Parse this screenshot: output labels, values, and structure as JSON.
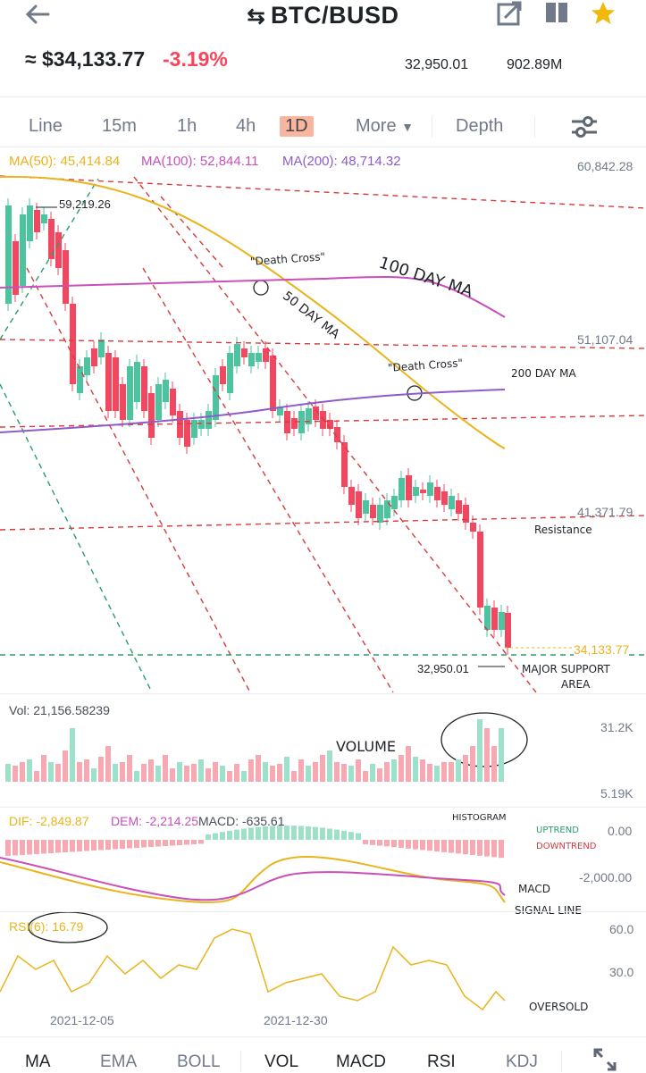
{
  "header": {
    "back_icon": "arrow-left-icon",
    "title": "BTC/BUSD",
    "swap_icon": "swap-icon",
    "share_icon": "share-icon",
    "split_icon": "split-screen-icon",
    "favorite_icon": "star-icon"
  },
  "ticker": {
    "price": "≈ $34,133.77",
    "change": "-3.19%",
    "low": "32,950.01",
    "volume": "902.89M"
  },
  "tabs": {
    "items": [
      "Line",
      "15m",
      "1h",
      "4h",
      "1D",
      "More",
      "Depth"
    ],
    "active": "1D",
    "settings_icon": "sliders-icon"
  },
  "ma": {
    "ma50": "MA(50): 45,414.84",
    "ma100": "MA(100): 52,844.11",
    "ma200": "MA(200): 48,714.32"
  },
  "price_axis": {
    "top": "60,842.28",
    "mid": "51,107.04",
    "low": "41,371.79",
    "current": "34,133.77",
    "high_marker": "59,219.26",
    "low_marker": "32,950.01"
  },
  "annotations": {
    "death_cross_1": "\"Death Cross\"",
    "day100": "100 DAY MA",
    "day50": "50 DAY MA",
    "death_cross_2": "\"Death Cross\"",
    "day200": "200 DAY MA",
    "resistance": "Resistance",
    "major_support": "MAJOR SUPPORT",
    "area": "AREA",
    "volume": "VOLUME",
    "histogram": "HISTOGRAM",
    "uptrend": "UPTREND",
    "downtrend": "DOWNTREND",
    "macd": "MACD",
    "signal": "SIGNAL LINE",
    "oversold": "OVERSOLD"
  },
  "volume": {
    "label": "Vol: 21,156.58239",
    "max": "31.2K",
    "min": "5.19K"
  },
  "macd": {
    "dif": "DIF: -2,849.87",
    "dem": "DEM: -2,214.25",
    "macd": "MACD: -635.61",
    "axis_top": "0.00",
    "axis_bottom": "-2,000.00"
  },
  "rsi": {
    "label": "RSI(6): 16.79",
    "axis_top": "60.0",
    "axis_mid": "30.0"
  },
  "dates": [
    "2021-12-05",
    "2021-12-30"
  ],
  "indicators": [
    "MA",
    "EMA",
    "BOLL",
    "VOL",
    "MACD",
    "RSI",
    "KDJ"
  ],
  "fullscreen_icon": "expand-icon",
  "colors": {
    "up": "#4ec3a0",
    "down": "#f04860",
    "ma50": "#e9b41c",
    "ma100": "#c94fbb",
    "ma200": "#8f5bc9",
    "annotation": "#d63b3b",
    "trend_green": "#2a9d6a"
  }
}
